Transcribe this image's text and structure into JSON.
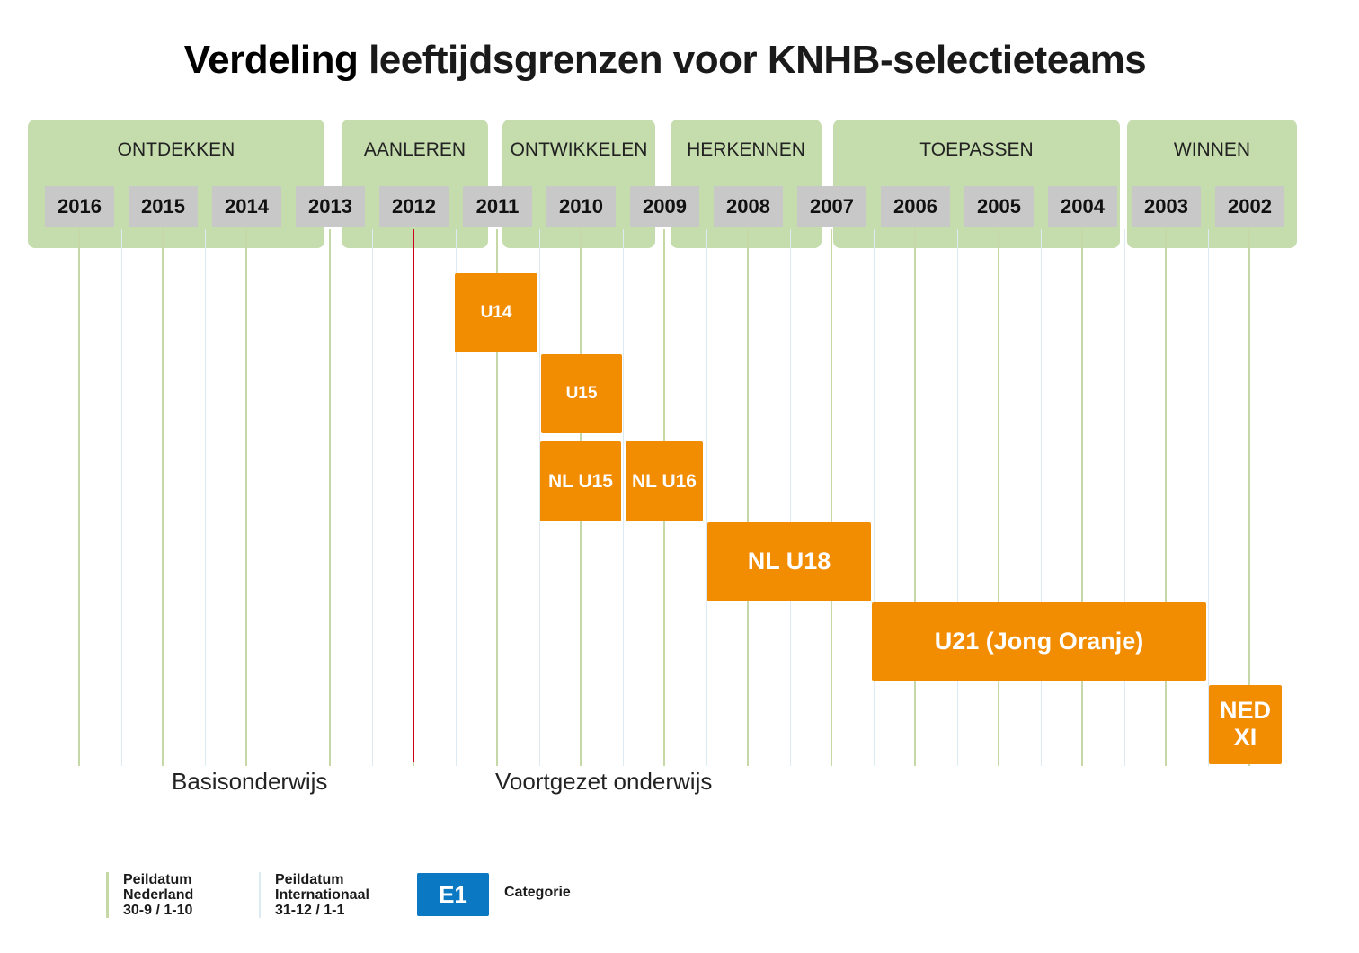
{
  "title": {
    "first": "Verdeling",
    "rest": "leeftijdsgrenzen voor KNHB-selectieteams"
  },
  "phases": [
    "ONTDEKKEN",
    "AANLEREN",
    "ONTWIKKELEN",
    "HERKENNEN",
    "TOEPASSEN",
    "WINNEN"
  ],
  "years": [
    "2016",
    "2015",
    "2014",
    "2013",
    "2012",
    "2011",
    "2010",
    "2009",
    "2008",
    "2007",
    "2006",
    "2005",
    "2004",
    "2003",
    "2002"
  ],
  "teams": [
    "U14",
    "U15",
    "NL U15",
    "NL U16",
    "NL U18",
    "U21 (Jong Oranje)",
    "NED XI"
  ],
  "school": {
    "primary": "Basisonderwijs",
    "secondary": "Voortgezet onderwijs"
  },
  "legend": {
    "nl": {
      "line1": "Peildatum",
      "line2": "Nederland",
      "line3": "30-9 / 1-10"
    },
    "int": {
      "line1": "Peildatum",
      "line2": "Internationaal",
      "line3": "31-12 / 1-1"
    },
    "badge": "E1",
    "badge_label": "Categorie"
  },
  "colors": {
    "phase": "#c5dcac",
    "year": "#c8c8c8",
    "team": "#f28c00",
    "cutoff": "#d0021b",
    "category": "#0a78c2"
  }
}
